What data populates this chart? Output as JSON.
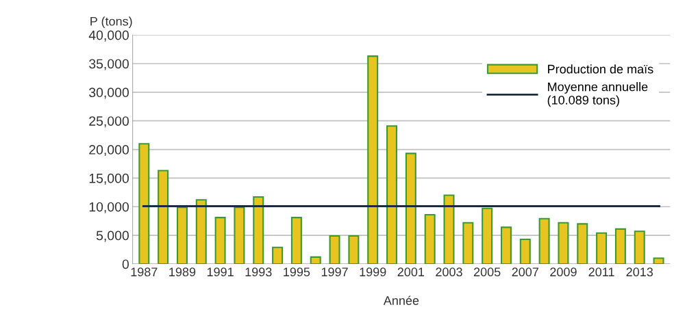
{
  "chart_data": {
    "type": "bar",
    "ylabel": "P (tons)",
    "xlabel": "Année",
    "categories": [
      "1987",
      null,
      "1989",
      null,
      "1991",
      null,
      "1993",
      null,
      "1995",
      null,
      "1997",
      null,
      "1999",
      null,
      "2001",
      null,
      "2003",
      null,
      "2005",
      null,
      "2007",
      null,
      "2009",
      null,
      "2011",
      null,
      "2013",
      null
    ],
    "series": [
      {
        "name": "Production de maïs",
        "color": "#e8c420",
        "values": [
          21000,
          16300,
          9900,
          11200,
          8100,
          9900,
          11700,
          2900,
          8100,
          1200,
          4900,
          4900,
          36300,
          24100,
          19300,
          8600,
          12000,
          7200,
          9700,
          6400,
          4300,
          7900,
          7200,
          7000,
          5400,
          6100,
          5700,
          1000
        ]
      }
    ],
    "ref_lines": [
      {
        "axis": "y",
        "value": 10089,
        "label": "Moyenne annuelle\n(10.089 tons)",
        "color": "#1a2a40",
        "line_style": "solid"
      }
    ],
    "ylim": [
      0,
      40000
    ],
    "yticks": [
      0,
      {
        "value": 5000,
        "label": "5,000"
      },
      {
        "value": 10000,
        "label": "10,000"
      },
      {
        "value": 15000,
        "label": "15,000"
      },
      {
        "value": 20000,
        "label": "20,000"
      },
      {
        "value": 25000,
        "label": "25,000"
      },
      {
        "value": 30000,
        "label": "30,000"
      },
      {
        "value": 35000,
        "label": "35,000"
      },
      {
        "value": 40000,
        "label": "40,000"
      }
    ],
    "grid": "y",
    "legend": "top right"
  }
}
